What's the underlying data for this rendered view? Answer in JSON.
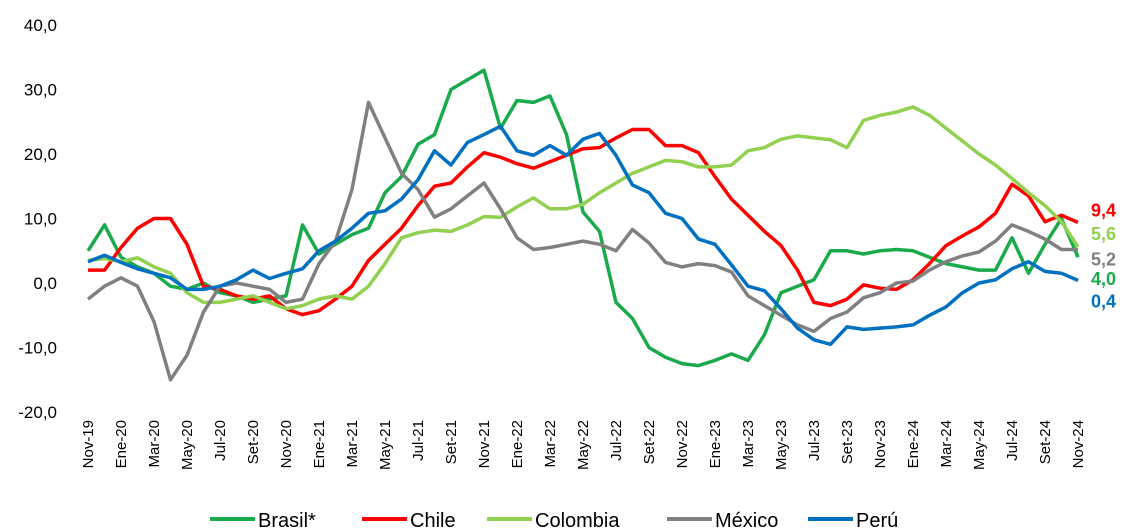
{
  "chart_data": {
    "type": "line",
    "categories": [
      "Nov-19",
      null,
      "Ene-20",
      null,
      "Mar-20",
      null,
      "May-20",
      null,
      "Jul-20",
      null,
      "Set-20",
      null,
      "Nov-20",
      null,
      "Ene-21",
      null,
      "Mar-21",
      null,
      "May-21",
      null,
      "Jul-21",
      null,
      "Set-21",
      null,
      "Nov-21",
      null,
      "Ene-22",
      null,
      "Mar-22",
      null,
      "May-22",
      null,
      "Jul-22",
      null,
      "Set-22",
      null,
      "Nov-22",
      null,
      "Ene-23",
      null,
      "Mar-23",
      null,
      "May-23",
      null,
      "Jul-23",
      null,
      "Set-23",
      null,
      "Nov-23",
      null,
      "Ene-24",
      null,
      "Mar-24",
      null,
      "May-24",
      null,
      "Jul-24",
      null,
      "Set-24",
      null,
      "Nov-24"
    ],
    "ylim": [
      -20,
      40
    ],
    "yticks": [
      {
        "value": -20,
        "label": "-20,0"
      },
      {
        "value": -10,
        "label": "-10,0"
      },
      {
        "value": 0,
        "label": "0,0"
      },
      {
        "value": 10,
        "label": "10,0"
      },
      {
        "value": 20,
        "label": "20,0"
      },
      {
        "value": 30,
        "label": "30,0"
      },
      {
        "value": 40,
        "label": "40,0"
      }
    ],
    "grid": false,
    "legend": "bottom",
    "series": [
      {
        "name": "Brasil*",
        "color": "#1aaa4b",
        "values": [
          5,
          9,
          4,
          2.5,
          1.5,
          -0.5,
          -1,
          0,
          -1.5,
          -2,
          -3,
          -2.5,
          -2,
          9,
          4.5,
          6,
          7.5,
          8.5,
          14,
          16.5,
          21.5,
          23,
          30,
          31.5,
          33,
          24,
          28.3,
          28,
          29,
          23,
          11,
          8,
          -3,
          -5.5,
          -10,
          -11.5,
          -12.5,
          -12.8,
          -12,
          -11,
          -12,
          -8,
          -1.5,
          -0.5,
          0.5,
          5,
          5,
          4.5,
          5,
          5.2,
          5,
          4,
          3,
          2.5,
          2,
          2,
          7,
          1.5,
          6,
          10,
          4.0
        ],
        "value_labels": [
          null,
          null,
          null,
          null,
          null,
          null,
          null,
          null,
          null,
          null,
          null,
          null,
          null,
          null,
          null,
          null,
          null,
          null,
          null,
          null,
          null,
          null,
          null,
          null,
          null,
          null,
          null,
          null,
          null,
          null,
          null,
          null,
          null,
          null,
          null,
          null,
          null,
          null,
          null,
          null,
          null,
          null,
          null,
          null,
          null,
          null,
          null,
          null,
          null,
          null,
          null,
          null,
          null,
          null,
          null,
          null,
          null,
          null,
          null,
          null,
          "4,0"
        ]
      },
      {
        "name": "Chile",
        "color": "#ff0000",
        "values": [
          2,
          2,
          5.5,
          8.5,
          10,
          10,
          6,
          -0.5,
          -1,
          -2,
          -2.5,
          -2,
          -4,
          -4.9,
          -4.3,
          -2.5,
          -0.5,
          3.5,
          6,
          8.5,
          12,
          15,
          15.5,
          18,
          20.2,
          19.5,
          18.5,
          17.8,
          18.8,
          19.8,
          20.8,
          21,
          22.5,
          23.8,
          23.8,
          21.3,
          21.3,
          20.2,
          16.5,
          13,
          10.5,
          8,
          5.8,
          2,
          -3,
          -3.5,
          -2.5,
          -0.3,
          -0.8,
          -1,
          0.5,
          3,
          5.8,
          7.3,
          8.7,
          10.8,
          15.3,
          13.5,
          9.5,
          10.5,
          9.4
        ],
        "value_labels": [
          null,
          null,
          null,
          null,
          null,
          null,
          null,
          null,
          null,
          null,
          null,
          null,
          null,
          null,
          null,
          null,
          null,
          null,
          null,
          null,
          null,
          null,
          null,
          null,
          null,
          null,
          null,
          null,
          null,
          null,
          null,
          null,
          null,
          null,
          null,
          null,
          null,
          null,
          null,
          null,
          null,
          null,
          null,
          null,
          null,
          null,
          null,
          null,
          null,
          null,
          null,
          null,
          null,
          null,
          null,
          null,
          null,
          null,
          null,
          null,
          "9,4"
        ]
      },
      {
        "name": "Colombia",
        "color": "#92d050",
        "values": [
          3.5,
          3.8,
          3.3,
          3.9,
          2.5,
          1.5,
          -1.5,
          -3,
          -3,
          -2.5,
          -2,
          -3,
          -4,
          -3.5,
          -2.5,
          -2,
          -2.5,
          -0.5,
          3,
          7,
          7.8,
          8.2,
          8,
          9,
          10.3,
          10.2,
          11.8,
          13.2,
          11.5,
          11.5,
          12.2,
          14,
          15.5,
          17,
          18,
          19,
          18.8,
          18,
          18,
          18.3,
          20.5,
          21,
          22.3,
          22.8,
          22.5,
          22.2,
          21,
          25.2,
          26,
          26.5,
          27.3,
          26,
          24,
          22,
          20,
          18.3,
          16.2,
          14,
          12,
          9.5,
          5.6
        ],
        "value_labels": [
          null,
          null,
          null,
          null,
          null,
          null,
          null,
          null,
          null,
          null,
          null,
          null,
          null,
          null,
          null,
          null,
          null,
          null,
          null,
          null,
          null,
          null,
          null,
          null,
          null,
          null,
          null,
          null,
          null,
          null,
          null,
          null,
          null,
          null,
          null,
          null,
          null,
          null,
          null,
          null,
          null,
          null,
          null,
          null,
          null,
          null,
          null,
          null,
          null,
          null,
          null,
          null,
          null,
          null,
          null,
          null,
          null,
          null,
          null,
          null,
          "5,6"
        ]
      },
      {
        "name": "México",
        "color": "#808080",
        "values": [
          -2.5,
          -0.5,
          0.8,
          -0.5,
          -6,
          -15,
          -11.2,
          -4.5,
          -0.5,
          0,
          -0.5,
          -1,
          -3,
          -2.5,
          3,
          6.5,
          14.5,
          28,
          22.5,
          17,
          14.5,
          10.2,
          11.5,
          13.5,
          15.5,
          11.5,
          7,
          5.2,
          5.5,
          6,
          6.5,
          6,
          5,
          8.3,
          6.2,
          3.2,
          2.5,
          3,
          2.7,
          1.7,
          -2,
          -3.5,
          -5,
          -6.5,
          -7.5,
          -5.5,
          -4.5,
          -2.3,
          -1.5,
          0,
          0.3,
          2,
          3.3,
          4.2,
          4.8,
          6.5,
          9,
          8,
          6.8,
          5.2,
          5.2
        ],
        "value_labels": [
          null,
          null,
          null,
          null,
          null,
          null,
          null,
          null,
          null,
          null,
          null,
          null,
          null,
          null,
          null,
          null,
          null,
          null,
          null,
          null,
          null,
          null,
          null,
          null,
          null,
          null,
          null,
          null,
          null,
          null,
          null,
          null,
          null,
          null,
          null,
          null,
          null,
          null,
          null,
          null,
          null,
          null,
          null,
          null,
          null,
          null,
          null,
          null,
          null,
          null,
          null,
          null,
          null,
          null,
          null,
          null,
          null,
          null,
          null,
          null,
          "5,2"
        ]
      },
      {
        "name": "Perú",
        "color": "#0070c0",
        "values": [
          3.3,
          4.3,
          3.2,
          2.2,
          1.5,
          0.8,
          -1,
          -1,
          -0.5,
          0.5,
          2,
          0.7,
          1.5,
          2.2,
          5,
          6.5,
          8.5,
          10.8,
          11.2,
          13,
          16,
          20.5,
          18.3,
          21.8,
          23,
          24.3,
          20.5,
          19.8,
          21.3,
          19.8,
          22.3,
          23.2,
          19.8,
          15.2,
          14,
          10.8,
          10,
          6.8,
          6,
          2.8,
          -0.5,
          -1.2,
          -4,
          -7,
          -8.8,
          -9.5,
          -6.8,
          -7.2,
          -7,
          -6.8,
          -6.5,
          -5,
          -3.7,
          -1.5,
          0,
          0.5,
          2.2,
          3.3,
          1.8,
          1.5,
          0.4
        ],
        "value_labels": [
          null,
          null,
          null,
          null,
          null,
          null,
          null,
          null,
          null,
          null,
          null,
          null,
          null,
          null,
          null,
          null,
          null,
          null,
          null,
          null,
          null,
          null,
          null,
          null,
          null,
          null,
          null,
          null,
          null,
          null,
          null,
          null,
          null,
          null,
          null,
          null,
          null,
          null,
          null,
          null,
          null,
          null,
          null,
          null,
          null,
          null,
          null,
          null,
          null,
          null,
          null,
          null,
          null,
          null,
          null,
          null,
          null,
          null,
          null,
          null,
          "0,4"
        ]
      }
    ]
  }
}
